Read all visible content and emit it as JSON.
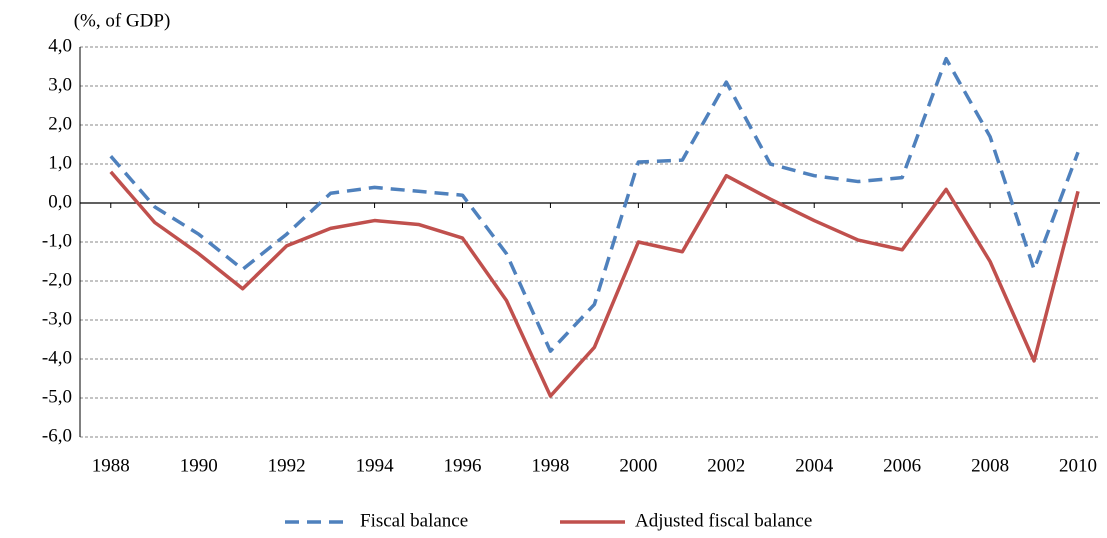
{
  "chart_data": {
    "type": "line",
    "y_unit_label": "(%, of GDP)",
    "x": [
      1988,
      1989,
      1990,
      1991,
      1992,
      1993,
      1994,
      1995,
      1996,
      1997,
      1998,
      1999,
      2000,
      2001,
      2002,
      2003,
      2004,
      2005,
      2006,
      2007,
      2008,
      2009,
      2010
    ],
    "series": [
      {
        "name": "Fiscal balance",
        "color": "#4f81bd",
        "dashed": true,
        "values": [
          1.2,
          -0.1,
          -0.8,
          -1.7,
          -0.8,
          0.25,
          0.4,
          0.3,
          0.2,
          -1.3,
          -3.8,
          -2.6,
          1.05,
          1.1,
          3.1,
          1.0,
          0.7,
          0.55,
          0.65,
          3.7,
          1.7,
          -1.7,
          1.3
        ]
      },
      {
        "name": "Adjusted fiscal balance",
        "color": "#c0504d",
        "dashed": false,
        "values": [
          0.8,
          -0.5,
          -1.3,
          -2.2,
          -1.1,
          -0.65,
          -0.45,
          -0.55,
          -0.9,
          -2.5,
          -4.95,
          -3.7,
          -1.0,
          -1.25,
          0.7,
          0.1,
          -0.45,
          -0.95,
          -1.2,
          0.35,
          -1.5,
          -4.05,
          0.3
        ]
      }
    ],
    "xlim": [
      1987.3,
      2010.5
    ],
    "xticks": [
      1988,
      1990,
      1992,
      1994,
      1996,
      1998,
      2000,
      2002,
      2004,
      2006,
      2008,
      2010
    ],
    "ylim": [
      -6,
      4
    ],
    "yticks": [
      {
        "value": 4,
        "label": "4,0"
      },
      {
        "value": 3,
        "label": "3,0"
      },
      {
        "value": 2,
        "label": "2,0"
      },
      {
        "value": 1,
        "label": "1,0"
      },
      {
        "value": 0,
        "label": "0,0"
      },
      {
        "value": -1,
        "label": "-1,0"
      },
      {
        "value": -2,
        "label": "-2,0"
      },
      {
        "value": -3,
        "label": "-3,0"
      },
      {
        "value": -4,
        "label": "-4,0"
      },
      {
        "value": -5,
        "label": "-5,0"
      },
      {
        "value": -6,
        "label": "-6,0"
      }
    ],
    "grid": true,
    "legend": "bottom"
  }
}
